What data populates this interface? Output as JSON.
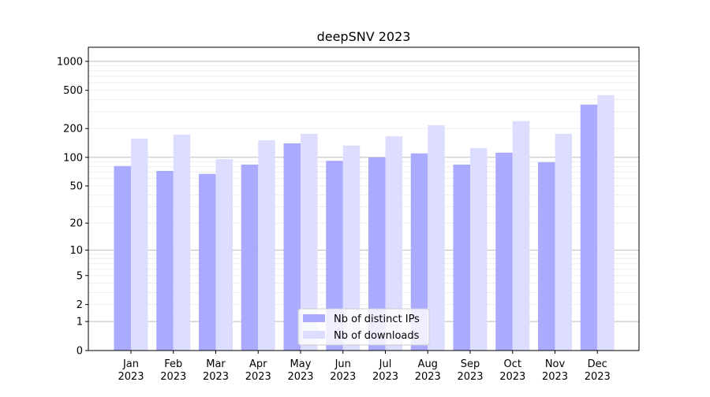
{
  "chart_data": {
    "type": "bar",
    "title": "deepSNV 2023",
    "xlabel": "",
    "ylabel": "",
    "yscale": "log10(1+y)",
    "ylim": [
      0,
      1400
    ],
    "yticks": [
      0,
      1,
      2,
      5,
      10,
      20,
      50,
      100,
      200,
      500,
      1000
    ],
    "grid": true,
    "legend_position": "bottom-center",
    "categories": [
      "Jan\n2023",
      "Feb\n2023",
      "Mar\n2023",
      "Apr\n2023",
      "May\n2023",
      "Jun\n2023",
      "Jul\n2023",
      "Aug\n2023",
      "Sep\n2023",
      "Oct\n2023",
      "Nov\n2023",
      "Dec\n2023"
    ],
    "series": [
      {
        "name": "Nb of distinct IPs",
        "color": "#aaaaff",
        "values": [
          81,
          72,
          67,
          84,
          140,
          92,
          100,
          110,
          84,
          112,
          89,
          355
        ]
      },
      {
        "name": "Nb of downloads",
        "color": "#ddddff",
        "values": [
          157,
          173,
          96,
          151,
          176,
          133,
          166,
          217,
          125,
          239,
          176,
          445
        ]
      }
    ]
  }
}
